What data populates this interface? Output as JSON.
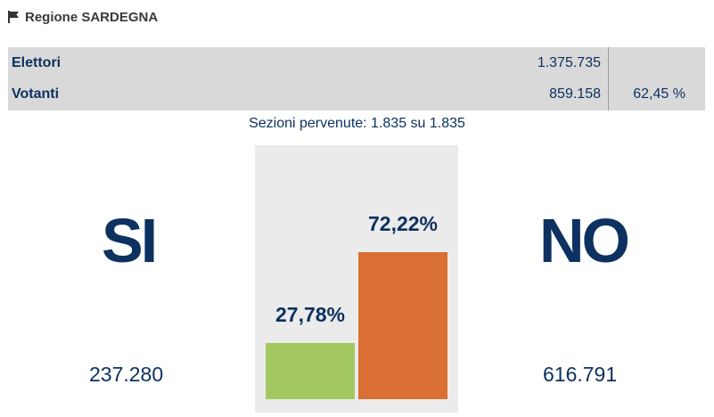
{
  "header": {
    "icon": "flag-icon",
    "title": "Regione SARDEGNA"
  },
  "stats": {
    "elettori_label": "Elettori",
    "elettori_value": "1.375.735",
    "votanti_label": "Votanti",
    "votanti_value": "859.158",
    "votanti_pct": "62,45 %"
  },
  "sezioni": "Sezioni pervenute: 1.835 su 1.835",
  "si": {
    "label": "SI",
    "count": "237.280"
  },
  "no": {
    "label": "NO",
    "count": "616.791"
  },
  "colors": {
    "navy": "#0d3160",
    "si_bar": "#a3c862",
    "no_bar": "#d96f33",
    "panel": "#ebebeb",
    "stats_bg": "#d9d9d9"
  },
  "chart_data": {
    "type": "bar",
    "categories": [
      "SI",
      "NO"
    ],
    "values": [
      27.78,
      72.22
    ],
    "labels": [
      "27,78%",
      "72,22%"
    ],
    "ylim": [
      0,
      100
    ]
  }
}
